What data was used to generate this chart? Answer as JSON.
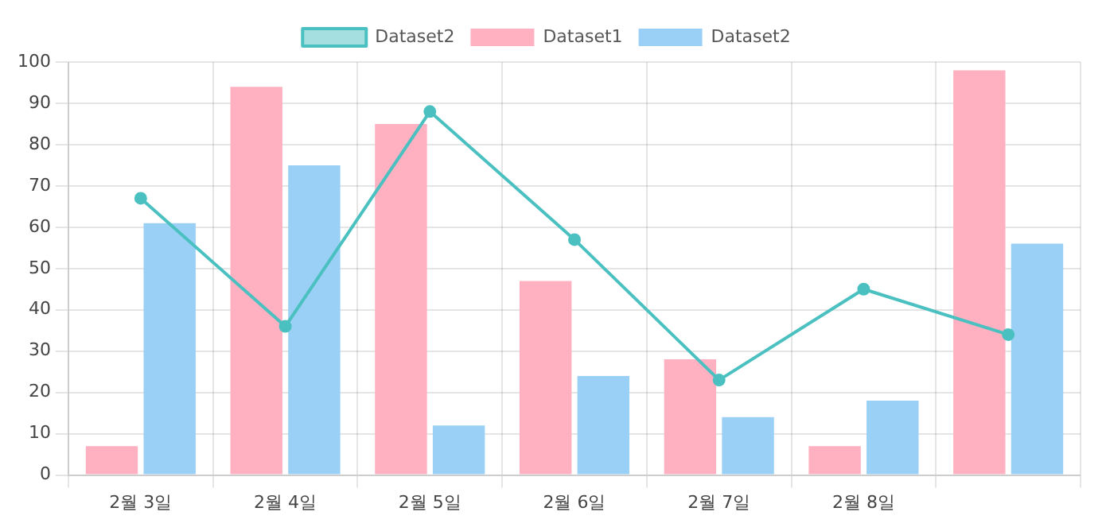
{
  "chart_data": {
    "type": "bar",
    "categories": [
      "2월 3일",
      "2월 4일",
      "2월 5일",
      "2월 6일",
      "2월 7일",
      "2월 8일",
      null
    ],
    "series": [
      {
        "name": "Dataset1",
        "color": "#ffb1c1",
        "values": [
          7,
          94,
          85,
          47,
          28,
          7,
          98
        ]
      },
      {
        "name": "Dataset2",
        "color": "#9ad0f5",
        "values": [
          61,
          75,
          12,
          24,
          14,
          18,
          56
        ]
      },
      {
        "name": "Dataset2",
        "type": "line",
        "color": "#4bc0c0",
        "values": [
          67,
          36,
          88,
          57,
          23,
          45,
          34
        ]
      }
    ],
    "ylim": [
      0,
      100
    ],
    "yticks": [
      0,
      10,
      20,
      30,
      40,
      50,
      60,
      70,
      80,
      90,
      100
    ],
    "grid": true,
    "legend": "top",
    "marker": "circle",
    "line_style": "solid"
  }
}
